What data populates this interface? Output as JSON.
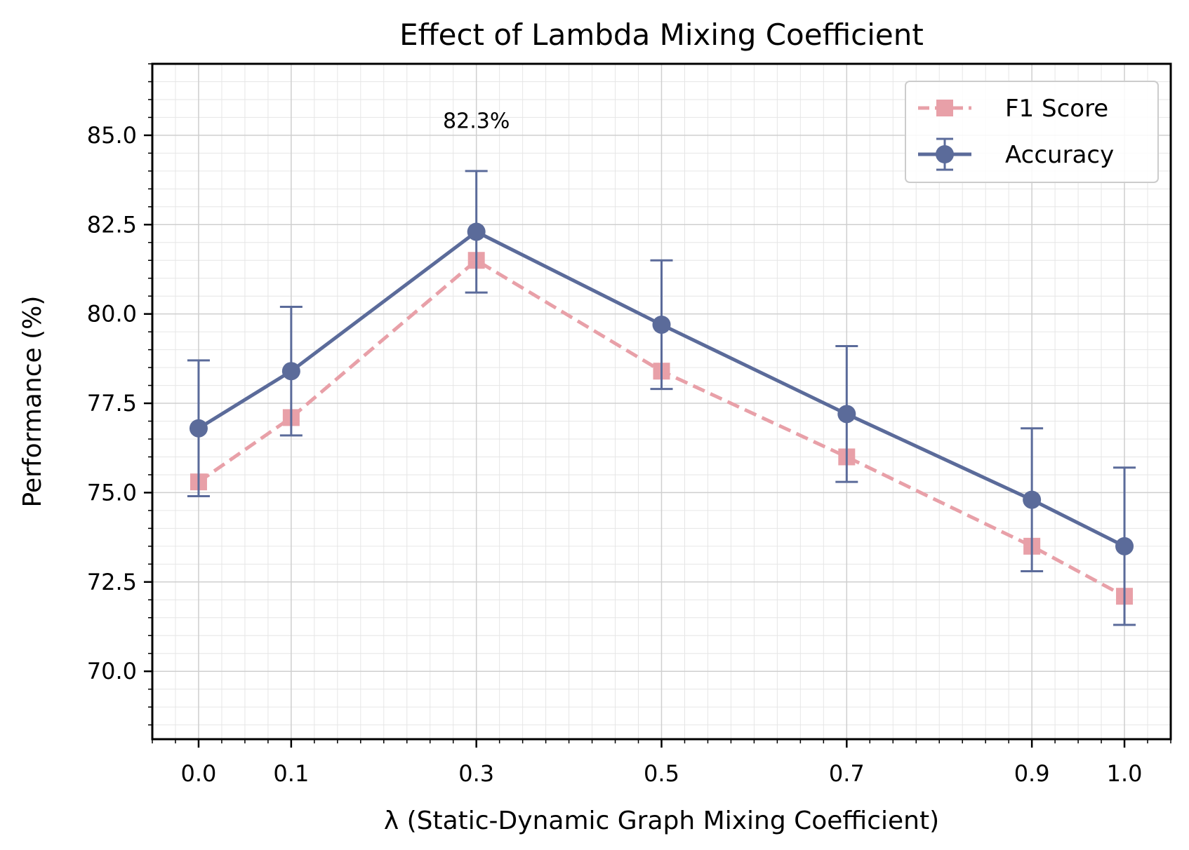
{
  "chart_data": {
    "type": "line",
    "title": "Effect of Lambda Mixing Coefficient",
    "xlabel": "λ (Static-Dynamic Graph Mixing Coefficient)",
    "ylabel": "Performance (%)",
    "x": [
      0.0,
      0.1,
      0.3,
      0.5,
      0.7,
      0.9,
      1.0
    ],
    "x_tick_labels": [
      "0.0",
      "0.1",
      "0.3",
      "0.5",
      "0.7",
      "0.9",
      "1.0"
    ],
    "y_tick_values": [
      70.0,
      72.5,
      75.0,
      77.5,
      80.0,
      82.5,
      85.0
    ],
    "y_tick_labels": [
      "70.0",
      "72.5",
      "75.0",
      "77.5",
      "80.0",
      "82.5",
      "85.0"
    ],
    "xlim": [
      -0.05,
      1.05
    ],
    "ylim": [
      68.1,
      87.0
    ],
    "grid": true,
    "legend_position": "top-right",
    "series": [
      {
        "name": "F1 Score",
        "style": "dashed-square",
        "color": "#E8A0A8",
        "values": [
          75.3,
          77.1,
          81.5,
          78.4,
          76.0,
          73.5,
          72.1
        ]
      },
      {
        "name": "Accuracy",
        "style": "solid-circle-errorbar",
        "color": "#5B6B9A",
        "values": [
          76.8,
          78.4,
          82.3,
          79.7,
          77.2,
          74.8,
          73.5
        ],
        "error": [
          1.9,
          1.8,
          1.7,
          1.8,
          1.9,
          2.0,
          2.2
        ]
      }
    ],
    "annotations": [
      {
        "text": "82.3%",
        "x": 0.3,
        "y": 85.4
      }
    ]
  }
}
